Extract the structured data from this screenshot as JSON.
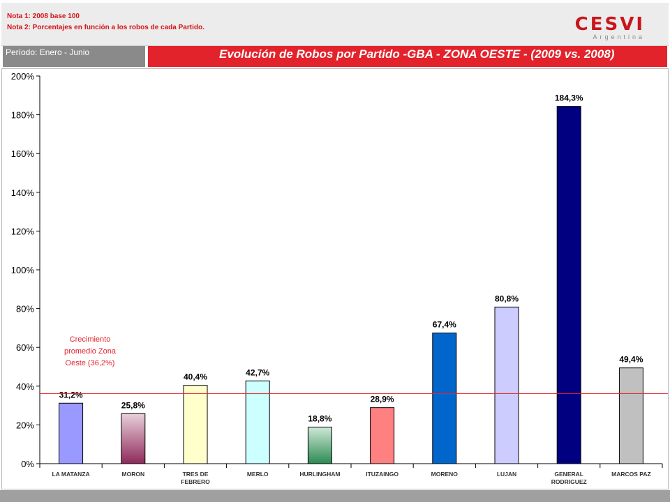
{
  "header": {
    "note1": "Nota 1: 2008 base 100",
    "note2": "Nota 2: Porcentajes en función a los robos de cada Partido.",
    "logo_main": "CESVI",
    "logo_sub": "Argentina"
  },
  "period_label": "Período: Enero - Junio",
  "title_text": "Evolución de Robos por Partido -GBA - ZONA OESTE - (2009 vs. 2008)",
  "chart_data": {
    "type": "bar",
    "title": "Evolución de Robos por Partido -GBA - ZONA OESTE - (2009 vs. 2008)",
    "categories": [
      "LA MATANZA",
      "MORON",
      "TRES DE FEBRERO",
      "MERLO",
      "HURLINGHAM",
      "ITUZAINGO",
      "MORENO",
      "LUJAN",
      "GENERAL RODRIGUEZ",
      "MARCOS PAZ"
    ],
    "category_lines": [
      [
        "LA MATANZA"
      ],
      [
        "MORON"
      ],
      [
        "TRES DE",
        "FEBRERO"
      ],
      [
        "MERLO"
      ],
      [
        "HURLINGHAM"
      ],
      [
        "ITUZAINGO"
      ],
      [
        "MORENO"
      ],
      [
        "LUJAN"
      ],
      [
        "GENERAL",
        "RODRIGUEZ"
      ],
      [
        "MARCOS PAZ"
      ]
    ],
    "values": [
      31.2,
      25.8,
      40.4,
      42.7,
      18.8,
      28.9,
      67.4,
      80.8,
      184.3,
      49.4
    ],
    "value_labels": [
      "31,2%",
      "25,8%",
      "40,4%",
      "42,7%",
      "18,8%",
      "28,9%",
      "67,4%",
      "80,8%",
      "184,3%",
      "49,4%"
    ],
    "colors": [
      "#9999ff",
      "#993366",
      "#ffffcc",
      "#ccffff",
      "#339966",
      "#ff8080",
      "#0066cc",
      "#ccccff",
      "#000080",
      "#c0c0c0"
    ],
    "yticks": [
      "0%",
      "20%",
      "40%",
      "60%",
      "80%",
      "100%",
      "120%",
      "140%",
      "160%",
      "180%",
      "200%"
    ],
    "ylim": [
      0,
      200
    ],
    "xlabel": "",
    "ylabel": "",
    "grid": false,
    "reference_line": {
      "value": 36.2,
      "color": "#e3232c"
    },
    "annotation_lines": [
      "Crecimiento",
      "promedio Zona",
      "Oeste (36,2%)"
    ]
  }
}
